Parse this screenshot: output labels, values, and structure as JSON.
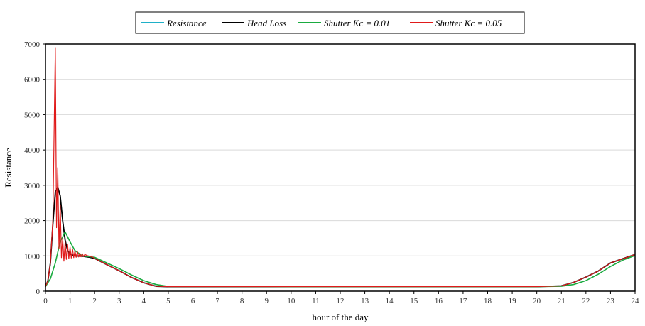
{
  "chart_data": {
    "type": "line",
    "xlabel": "hour of the day",
    "ylabel": "Resistance",
    "xlim": [
      0,
      24
    ],
    "ylim": [
      0,
      7000
    ],
    "xticks": [
      "0",
      "1",
      "2",
      "3",
      "4",
      "5",
      "6",
      "7",
      "8",
      "9",
      "10",
      "11",
      "12",
      "13",
      "14",
      "15",
      "16",
      "17",
      "18",
      "19",
      "20",
      "21",
      "22",
      "23",
      "24"
    ],
    "yticks": [
      "0",
      "1000",
      "2000",
      "3000",
      "4000",
      "5000",
      "6000",
      "7000"
    ],
    "grid": "horizontal",
    "legend_position": "top",
    "series": [
      {
        "name": "Resistance",
        "color": "#1fb0c8",
        "x": [
          0,
          0.1,
          0.2,
          0.3,
          0.4,
          0.5,
          0.6,
          0.7,
          0.8,
          0.9,
          1.0,
          1.2,
          1.5,
          1.8,
          2.0,
          2.5,
          3.0,
          3.5,
          4.0,
          4.5,
          5.0,
          10.0,
          15.0,
          20.0,
          21.0,
          21.5,
          22.0,
          22.5,
          23.0,
          23.5,
          24.0
        ],
        "y": [
          130,
          300,
          800,
          1900,
          2800,
          2950,
          2700,
          2000,
          1450,
          1150,
          1050,
          1000,
          990,
          960,
          930,
          750,
          580,
          390,
          240,
          140,
          130,
          130,
          130,
          130,
          150,
          250,
          400,
          570,
          800,
          920,
          1040
        ]
      },
      {
        "name": "Head Loss",
        "color": "#000000",
        "x": [
          0,
          0.1,
          0.2,
          0.3,
          0.4,
          0.5,
          0.6,
          0.7,
          0.8,
          0.9,
          1.0,
          1.2,
          1.5,
          1.8,
          2.0,
          2.5,
          3.0,
          3.5,
          4.0,
          4.5,
          5.0,
          10.0,
          15.0,
          20.0,
          21.0,
          21.5,
          22.0,
          22.5,
          23.0,
          23.5,
          24.0
        ],
        "y": [
          130,
          300,
          800,
          1900,
          2800,
          2950,
          2700,
          2000,
          1450,
          1150,
          1050,
          1000,
          990,
          960,
          930,
          750,
          580,
          390,
          240,
          140,
          130,
          130,
          130,
          130,
          150,
          250,
          400,
          570,
          800,
          920,
          1040
        ]
      },
      {
        "name": "Shutter Kc = 0.01",
        "color": "#1aab40",
        "x": [
          0,
          0.2,
          0.4,
          0.6,
          0.8,
          1.0,
          1.2,
          1.5,
          2.0,
          2.5,
          3.0,
          3.5,
          4.0,
          4.5,
          5.0,
          10.0,
          15.0,
          20.0,
          21.0,
          21.5,
          22.0,
          22.5,
          23.0,
          23.5,
          24.0
        ],
        "y": [
          130,
          350,
          800,
          1400,
          1680,
          1400,
          1150,
          1000,
          960,
          800,
          640,
          460,
          300,
          190,
          135,
          130,
          130,
          130,
          140,
          190,
          300,
          480,
          700,
          880,
          1010
        ]
      },
      {
        "name": "Shutter Kc = 0.05",
        "color": "#e01a1a",
        "x": [
          0,
          0.1,
          0.2,
          0.3,
          0.4,
          0.45,
          0.5,
          0.55,
          0.6,
          0.65,
          0.7,
          0.75,
          0.8,
          0.85,
          0.9,
          0.95,
          1.0,
          1.05,
          1.1,
          1.15,
          1.2,
          1.25,
          1.3,
          1.35,
          1.4,
          1.45,
          1.5,
          1.55,
          1.6,
          1.7,
          1.8,
          1.9,
          2.0,
          2.5,
          3.0,
          3.5,
          4.0,
          4.5,
          5.0,
          10.0,
          15.0,
          20.0,
          21.0,
          21.5,
          22.0,
          22.5,
          23.0,
          23.5,
          24.0
        ],
        "y": [
          130,
          300,
          800,
          2000,
          6900,
          1800,
          3500,
          1200,
          2450,
          950,
          1500,
          850,
          1400,
          900,
          1320,
          920,
          1250,
          940,
          1200,
          950,
          1150,
          960,
          1120,
          970,
          1080,
          975,
          1060,
          980,
          1040,
          1010,
          990,
          970,
          930,
          750,
          580,
          390,
          240,
          140,
          130,
          130,
          130,
          130,
          150,
          250,
          400,
          570,
          800,
          920,
          1040
        ]
      }
    ]
  }
}
